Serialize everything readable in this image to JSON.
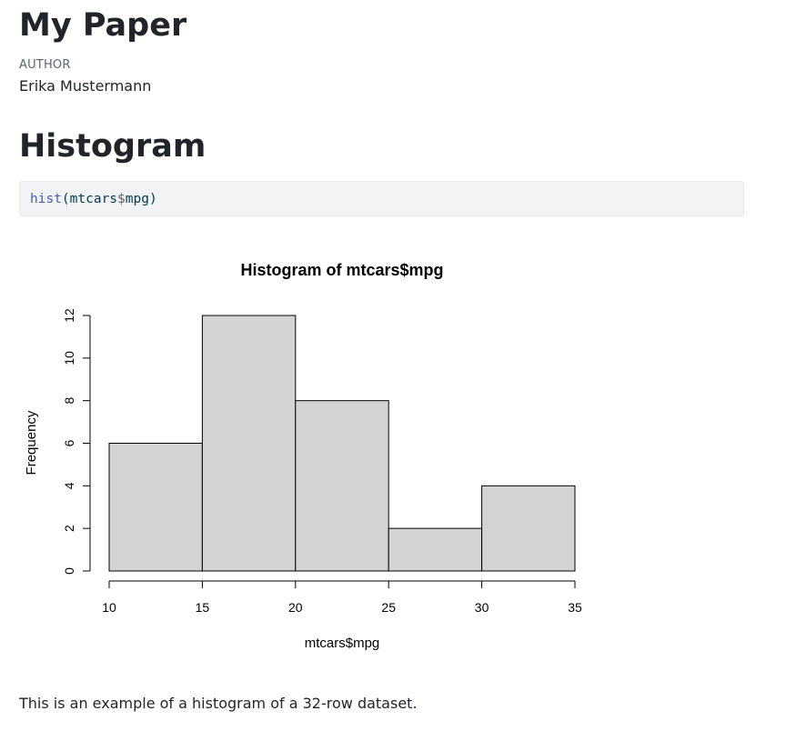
{
  "document": {
    "title": "My Paper",
    "author_label": "AUTHOR",
    "author_name": "Erika Mustermann",
    "section_heading": "Histogram",
    "code": {
      "function": "hist",
      "open_paren": "(",
      "object": "mtcars",
      "operator": "$",
      "field": "mpg",
      "close_paren": ")"
    },
    "caption": "This is an example of a histogram of a 32-row dataset."
  },
  "chart_data": {
    "type": "bar",
    "title": "Histogram of mtcars$mpg",
    "xlabel": "mtcars$mpg",
    "ylabel": "Frequency",
    "bins": [
      {
        "from": 10,
        "to": 15,
        "count": 6
      },
      {
        "from": 15,
        "to": 20,
        "count": 12
      },
      {
        "from": 20,
        "to": 25,
        "count": 8
      },
      {
        "from": 25,
        "to": 30,
        "count": 2
      },
      {
        "from": 30,
        "to": 35,
        "count": 4
      }
    ],
    "xlim": [
      10,
      35
    ],
    "ylim": [
      0,
      12
    ],
    "x_ticks": [
      10,
      15,
      20,
      25,
      30,
      35
    ],
    "y_ticks": [
      0,
      2,
      4,
      6,
      8,
      10,
      12
    ],
    "bar_fill": "#d3d3d3",
    "bar_stroke": "#000000",
    "grid": false
  }
}
